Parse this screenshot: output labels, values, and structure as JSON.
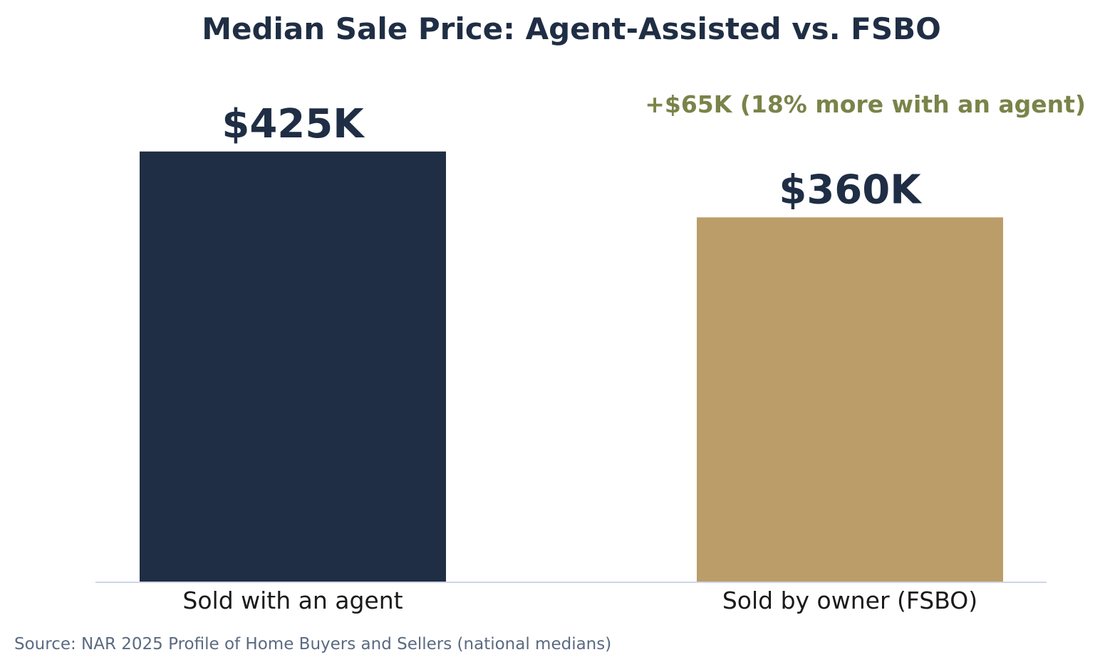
{
  "chart_data": {
    "type": "bar",
    "title": "Median Sale Price: Agent-Assisted vs. FSBO",
    "xlabel": "",
    "ylabel": "",
    "categories": [
      "Sold with an agent",
      "Sold by owner (FSBO)"
    ],
    "values": [
      425,
      360
    ],
    "unit": "$K",
    "value_labels": [
      "$425K",
      "$360K"
    ],
    "ylim": [
      0,
      500
    ],
    "grid": false,
    "legend": "none",
    "annotations": [
      {
        "text": "+$65K  (18% more with an agent)",
        "attached_to": "Sold by owner (FSBO)"
      }
    ],
    "source": "Source: NAR 2025 Profile of Home Buyers and Sellers (national medians)",
    "colors": {
      "bars": [
        "#1f2e44",
        "#bb9d69"
      ],
      "title": "#1f2e44",
      "value_labels": "#1f2e44",
      "annotation": "#7a8349",
      "category_labels": "#1a1a1a",
      "source": "#5a6a80",
      "axis_line": "#ccd6e8"
    }
  }
}
